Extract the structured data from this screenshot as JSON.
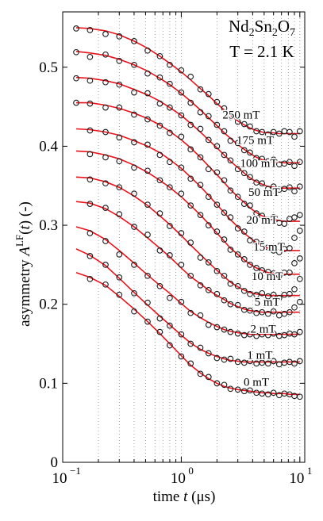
{
  "chart_data": {
    "type": "scatter",
    "title_main": "Nd$_2$Sn$_2$O$_7$",
    "title_temp": "T = 2.1 K",
    "xlabel": "time t (μs)",
    "ylabel": "asymmetry A^LF(t) (-)",
    "xscale": "log",
    "xlim": [
      0.1,
      11
    ],
    "ylim": [
      0,
      0.57
    ],
    "xticks": [
      {
        "value": 0.1,
        "label": "10",
        "exp": "−1"
      },
      {
        "value": 1,
        "label": "10",
        "exp": "0"
      },
      {
        "value": 10,
        "label": "10",
        "exp": "1"
      }
    ],
    "yticks": [
      0,
      0.1,
      0.2,
      0.3,
      0.4,
      0.5
    ],
    "grid": "vertical dotted at log minor ticks",
    "colors": {
      "fit": "#e8131b",
      "points": "#1a1a1a",
      "grid": "#8c8c8c"
    },
    "x": [
      0.13,
      0.17,
      0.23,
      0.3,
      0.4,
      0.52,
      0.66,
      0.8,
      1.0,
      1.2,
      1.45,
      1.7,
      2.0,
      2.3,
      2.6,
      3.0,
      3.4,
      3.8,
      4.3,
      4.8,
      5.4,
      6.0,
      6.7,
      7.4,
      8.2,
      9.0,
      10.0
    ],
    "series": [
      {
        "name": "250 mT",
        "label_x": 3.2,
        "label_y": 0.435,
        "fit": [
          0.55,
          0.549,
          0.546,
          0.541,
          0.533,
          0.524,
          0.514,
          0.505,
          0.494,
          0.484,
          0.473,
          0.464,
          0.454,
          0.446,
          0.439,
          0.432,
          0.427,
          0.423,
          0.42,
          0.418,
          0.417,
          0.417,
          0.416,
          0.416,
          0.416,
          0.416,
          0.416
        ],
        "values": [
          0.549,
          0.547,
          0.542,
          0.539,
          0.533,
          0.521,
          0.514,
          0.503,
          0.496,
          0.488,
          0.472,
          0.466,
          0.456,
          0.448,
          0.437,
          0.431,
          0.428,
          0.425,
          0.419,
          0.418,
          0.415,
          0.418,
          0.416,
          0.419,
          0.418,
          0.412,
          0.419
        ]
      },
      {
        "name": "175 mT",
        "label_x": 4.2,
        "label_y": 0.403,
        "fit": [
          0.52,
          0.518,
          0.515,
          0.51,
          0.503,
          0.495,
          0.486,
          0.478,
          0.467,
          0.457,
          0.446,
          0.436,
          0.426,
          0.417,
          0.41,
          0.402,
          0.396,
          0.391,
          0.386,
          0.383,
          0.381,
          0.38,
          0.38,
          0.379,
          0.379,
          0.379,
          0.379
        ],
        "values": [
          0.519,
          0.513,
          0.516,
          0.508,
          0.503,
          0.492,
          0.487,
          0.479,
          0.468,
          0.455,
          0.443,
          0.438,
          0.427,
          0.419,
          0.407,
          0.404,
          0.395,
          0.392,
          0.385,
          0.384,
          0.381,
          0.383,
          0.377,
          0.378,
          0.38,
          0.375,
          0.38
        ]
      },
      {
        "name": "100 mT",
        "label_x": 4.5,
        "label_y": 0.374,
        "fit": [
          0.487,
          0.486,
          0.483,
          0.479,
          0.472,
          0.465,
          0.457,
          0.449,
          0.439,
          0.429,
          0.418,
          0.408,
          0.398,
          0.389,
          0.381,
          0.373,
          0.366,
          0.36,
          0.355,
          0.352,
          0.349,
          0.348,
          0.347,
          0.347,
          0.347,
          0.347,
          0.347
        ],
        "values": [
          0.486,
          0.483,
          0.481,
          0.478,
          0.468,
          0.467,
          0.454,
          0.449,
          0.439,
          0.427,
          0.422,
          0.408,
          0.4,
          0.389,
          0.382,
          0.371,
          0.366,
          0.361,
          0.354,
          0.353,
          0.346,
          0.349,
          0.345,
          0.346,
          0.348,
          0.343,
          0.349
        ]
      },
      {
        "name": "50 mT",
        "label_x": 5.0,
        "label_y": 0.337,
        "fit": [
          0.455,
          0.455,
          0.452,
          0.448,
          0.442,
          0.435,
          0.427,
          0.419,
          0.408,
          0.398,
          0.386,
          0.375,
          0.364,
          0.354,
          0.345,
          0.336,
          0.329,
          0.322,
          0.316,
          0.312,
          0.309,
          0.307,
          0.306,
          0.305,
          0.305,
          0.305,
          0.305
        ],
        "values": [
          0.455,
          0.454,
          0.449,
          0.449,
          0.44,
          0.434,
          0.426,
          0.417,
          0.412,
          0.396,
          0.386,
          0.371,
          0.367,
          0.357,
          0.344,
          0.336,
          0.327,
          0.325,
          0.315,
          0.312,
          0.307,
          0.31,
          0.303,
          0.302,
          0.308,
          0.31,
          0.313
        ]
      },
      {
        "name": "20 mT",
        "label_x": 4.8,
        "label_y": 0.302,
        "fit": [
          0.422,
          0.421,
          0.418,
          0.414,
          0.407,
          0.4,
          0.392,
          0.383,
          0.372,
          0.361,
          0.349,
          0.338,
          0.326,
          0.316,
          0.307,
          0.298,
          0.29,
          0.284,
          0.278,
          0.274,
          0.271,
          0.269,
          0.268,
          0.268,
          0.268,
          0.268,
          0.268
        ],
        "values": [
          0.421,
          0.42,
          0.418,
          0.411,
          0.405,
          0.402,
          0.389,
          0.38,
          0.373,
          0.359,
          0.351,
          0.336,
          0.326,
          0.316,
          0.31,
          0.296,
          0.292,
          0.281,
          0.279,
          0.276,
          0.272,
          0.268,
          0.266,
          0.27,
          0.271,
          0.284,
          0.293
        ]
      },
      {
        "name": "15 mT",
        "label_x": 5.5,
        "label_y": 0.268,
        "fit": [
          0.394,
          0.393,
          0.389,
          0.384,
          0.376,
          0.367,
          0.357,
          0.348,
          0.336,
          0.325,
          0.313,
          0.302,
          0.29,
          0.28,
          0.271,
          0.263,
          0.256,
          0.251,
          0.246,
          0.243,
          0.24,
          0.239,
          0.238,
          0.238,
          0.238,
          0.238,
          0.238
        ],
        "values": [
          0.393,
          0.39,
          0.386,
          0.381,
          0.373,
          0.369,
          0.357,
          0.348,
          0.34,
          0.325,
          0.313,
          0.3,
          0.292,
          0.282,
          0.269,
          0.263,
          0.257,
          0.25,
          0.246,
          0.243,
          0.241,
          0.239,
          0.236,
          0.24,
          0.24,
          0.252,
          0.258
        ]
      },
      {
        "name": "10 mT",
        "label_x": 5.3,
        "label_y": 0.231,
        "fit": [
          0.361,
          0.36,
          0.355,
          0.348,
          0.337,
          0.325,
          0.312,
          0.301,
          0.287,
          0.275,
          0.263,
          0.253,
          0.243,
          0.235,
          0.228,
          0.222,
          0.218,
          0.215,
          0.213,
          0.212,
          0.211,
          0.211,
          0.211,
          0.211,
          0.211,
          0.211,
          0.211
        ],
        "values": [
          0.361,
          0.358,
          0.353,
          0.348,
          0.34,
          0.326,
          0.315,
          0.299,
          0.29,
          0.278,
          0.259,
          0.253,
          0.242,
          0.236,
          0.226,
          0.223,
          0.217,
          0.213,
          0.212,
          0.214,
          0.21,
          0.212,
          0.208,
          0.212,
          0.213,
          0.219,
          0.232
        ]
      },
      {
        "name": "5 mT",
        "label_x": 5.3,
        "label_y": 0.198,
        "fit": [
          0.33,
          0.328,
          0.321,
          0.311,
          0.298,
          0.284,
          0.271,
          0.26,
          0.246,
          0.235,
          0.226,
          0.218,
          0.211,
          0.206,
          0.201,
          0.197,
          0.194,
          0.192,
          0.191,
          0.19,
          0.19,
          0.19,
          0.19,
          0.19,
          0.19,
          0.19,
          0.19
        ],
        "values": [
          0.33,
          0.327,
          0.322,
          0.314,
          0.298,
          0.288,
          0.268,
          0.262,
          0.25,
          0.236,
          0.224,
          0.218,
          0.213,
          0.205,
          0.2,
          0.199,
          0.193,
          0.192,
          0.189,
          0.19,
          0.188,
          0.191,
          0.186,
          0.188,
          0.19,
          0.196,
          0.203
        ]
      },
      {
        "name": "2 mT",
        "label_x": 4.9,
        "label_y": 0.164,
        "fit": [
          0.298,
          0.293,
          0.282,
          0.268,
          0.252,
          0.237,
          0.224,
          0.214,
          0.201,
          0.191,
          0.183,
          0.177,
          0.172,
          0.168,
          0.166,
          0.164,
          0.163,
          0.162,
          0.162,
          0.162,
          0.162,
          0.162,
          0.162,
          0.162,
          0.162,
          0.162,
          0.162
        ],
        "values": [
          0.297,
          0.29,
          0.28,
          0.263,
          0.25,
          0.236,
          0.223,
          0.208,
          0.203,
          0.189,
          0.186,
          0.174,
          0.171,
          0.168,
          0.165,
          0.163,
          0.161,
          0.162,
          0.16,
          0.162,
          0.161,
          0.163,
          0.16,
          0.161,
          0.163,
          0.162,
          0.165
        ]
      },
      {
        "name": "1 mT",
        "label_x": 4.6,
        "label_y": 0.131,
        "fit": [
          0.27,
          0.262,
          0.249,
          0.233,
          0.215,
          0.199,
          0.185,
          0.174,
          0.161,
          0.151,
          0.143,
          0.138,
          0.134,
          0.131,
          0.129,
          0.128,
          0.127,
          0.127,
          0.127,
          0.127,
          0.127,
          0.127,
          0.127,
          0.127,
          0.127,
          0.127,
          0.127
        ],
        "values": [
          0.266,
          0.261,
          0.25,
          0.234,
          0.214,
          0.202,
          0.182,
          0.173,
          0.162,
          0.15,
          0.145,
          0.138,
          0.132,
          0.13,
          0.131,
          0.127,
          0.126,
          0.128,
          0.125,
          0.126,
          0.125,
          0.128,
          0.124,
          0.126,
          0.127,
          0.125,
          0.128
        ]
      },
      {
        "name": "0 mT",
        "label_x": 4.3,
        "label_y": 0.097,
        "fit": [
          0.24,
          0.234,
          0.224,
          0.21,
          0.194,
          0.178,
          0.163,
          0.15,
          0.135,
          0.123,
          0.113,
          0.106,
          0.1,
          0.096,
          0.094,
          0.092,
          0.091,
          0.09,
          0.089,
          0.088,
          0.088,
          0.087,
          0.087,
          0.087,
          0.086,
          0.086,
          0.086
        ],
        "values": [
          0.238,
          0.232,
          0.225,
          0.212,
          0.191,
          0.178,
          0.165,
          0.148,
          0.134,
          0.125,
          0.112,
          0.108,
          0.1,
          0.098,
          0.093,
          0.092,
          0.09,
          0.091,
          0.088,
          0.087,
          0.086,
          0.088,
          0.085,
          0.087,
          0.086,
          0.084,
          0.083
        ]
      }
    ]
  }
}
